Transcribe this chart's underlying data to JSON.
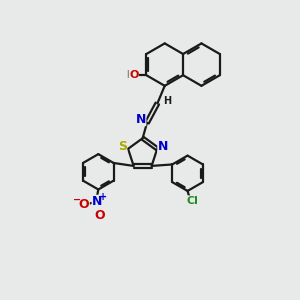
{
  "bg_color": "#e8eaea",
  "bond_color": "#1a1a1a",
  "bond_width": 1.6,
  "atom_colors": {
    "C": "#1a1a1a",
    "H": "#1a1a1a",
    "O": "#cc0000",
    "N": "#0000cc",
    "S": "#aaaa00",
    "Cl": "#228b22"
  }
}
